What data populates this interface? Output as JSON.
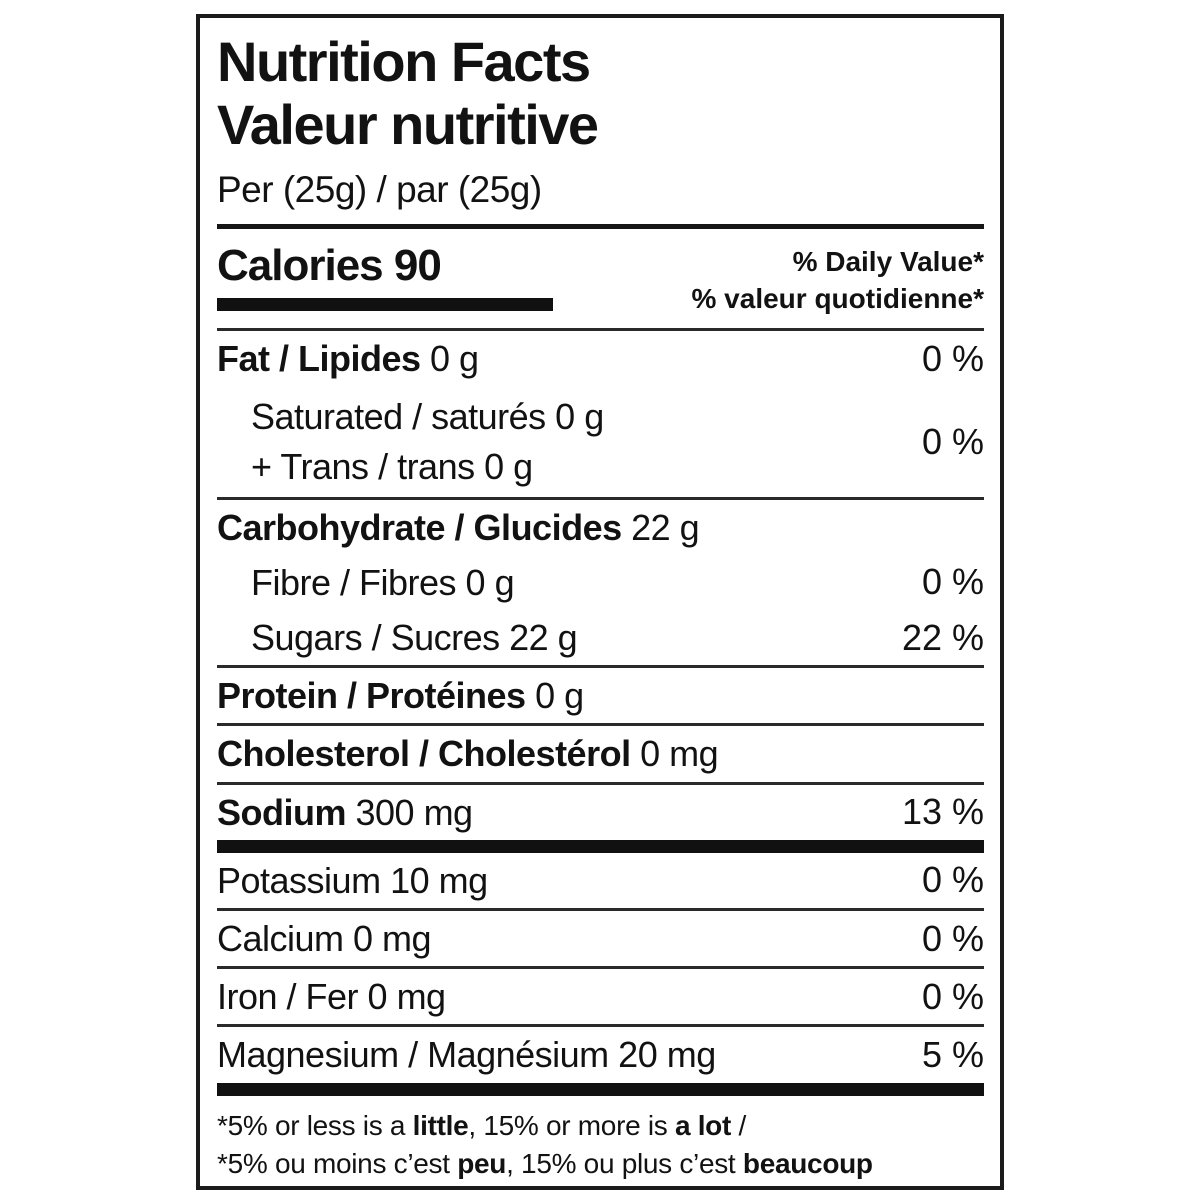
{
  "label": {
    "title_en": "Nutrition Facts",
    "title_fr": "Valeur nutritive",
    "serving": "Per (25g) / par (25g)",
    "calories_label": "Calories",
    "calories_value": "90",
    "daily_value_en": "% Daily Value*",
    "daily_value_fr": "% valeur quotidienne*",
    "rows": [
      {
        "bold": "Fat / Lipides",
        "rest": " 0 g",
        "pct": "0 %"
      },
      {
        "lines": [
          "Saturated / saturés 0 g",
          "+ Trans / trans 0 g"
        ],
        "pct": "0 %"
      },
      {
        "bold": "Carbohydrate / Glucides",
        "rest": " 22 g",
        "pct": ""
      },
      {
        "bold": "",
        "rest": "Fibre / Fibres 0 g",
        "pct": "0 %"
      },
      {
        "bold": "",
        "rest": "Sugars / Sucres 22 g",
        "pct": "22 %"
      },
      {
        "bold": "Protein / Protéines",
        "rest": " 0 g",
        "pct": ""
      },
      {
        "bold": "Cholesterol / Cholestérol",
        "rest": " 0 mg",
        "pct": ""
      },
      {
        "bold": "Sodium",
        "rest": " 300 mg",
        "pct": "13 %"
      },
      {
        "bold": "",
        "rest": "Potassium 10 mg",
        "pct": "0 %"
      },
      {
        "bold": "",
        "rest": "Calcium 0 mg",
        "pct": "0 %"
      },
      {
        "bold": "",
        "rest": "Iron / Fer 0 mg",
        "pct": "0 %"
      },
      {
        "bold": "",
        "rest": "Magnesium / Magnésium 20 mg",
        "pct": "5 %"
      }
    ],
    "footnote_en": {
      "pre": "*5% or less is a ",
      "b1": "little",
      "mid": ", 15% or more is ",
      "b2": "a lot",
      "post": " /"
    },
    "footnote_fr": {
      "pre": "*5% ou moins c’est ",
      "b1": "peu",
      "mid": ", 15% ou plus c’est ",
      "b2": "beaucoup",
      "post": ""
    }
  }
}
